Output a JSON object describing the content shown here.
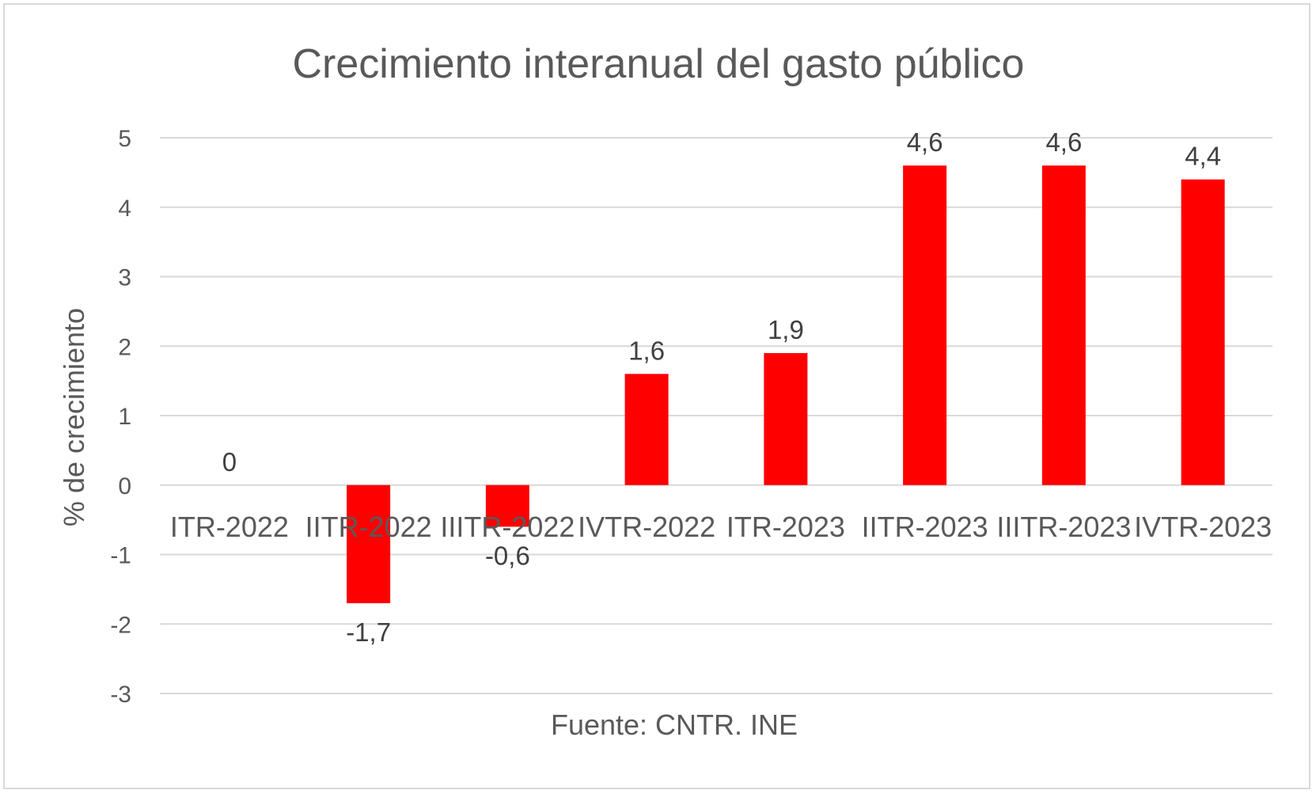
{
  "chart_data": {
    "type": "bar",
    "title": "Crecimiento interanual del gasto público",
    "ylabel": "% de crecimiento",
    "xlabel": "Fuente: CNTR. INE",
    "categories": [
      "ITR-2022",
      "IITR-2022",
      "IIITR-2022",
      "IVTR-2022",
      "ITR-2023",
      "IITR-2023",
      "IIITR-2023",
      "IVTR-2023"
    ],
    "values": [
      0,
      -1.7,
      -0.6,
      1.6,
      1.9,
      4.6,
      4.6,
      4.4
    ],
    "data_labels": [
      "0",
      "-1,7",
      "-0,6",
      "1,6",
      "1,9",
      "4,6",
      "4,6",
      "4,4"
    ],
    "ylim": [
      -3,
      5
    ],
    "yticks": [
      5,
      4,
      3,
      2,
      1,
      0,
      -1,
      -2,
      -3
    ],
    "grid": true,
    "legend": "none",
    "colors": {
      "bar": "#ff0000",
      "grid": "#d9d9d9",
      "text": "#595959",
      "frame": "#d9d9d9"
    }
  }
}
